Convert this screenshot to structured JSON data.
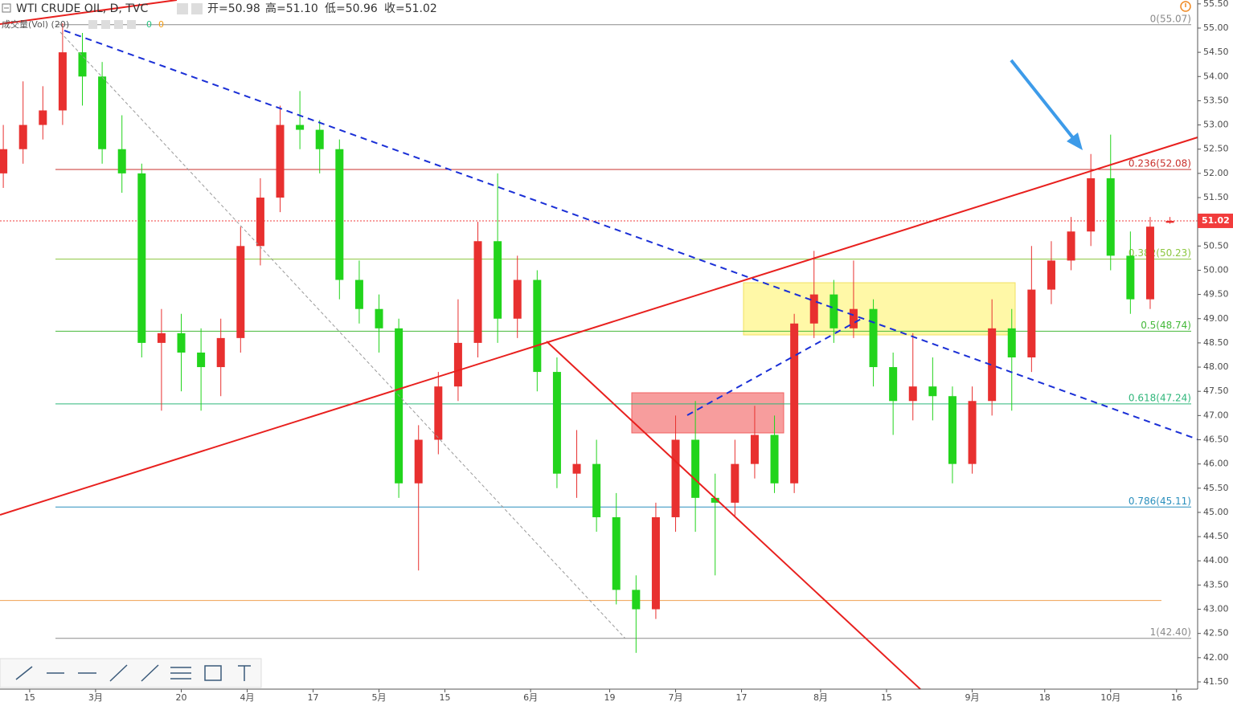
{
  "chart_data": {
    "type": "candlestick",
    "title": "WTI CRUDE OIL, D, TVC",
    "ohlc_labels": [
      "开=50.98",
      "高=51.10",
      "低=50.96",
      "收=51.02"
    ],
    "volume_label": "成交量(Vol) (20)",
    "volume_values": [
      {
        "value": 0,
        "color": "#26c281"
      },
      {
        "value": 0,
        "color": "#f39c12"
      }
    ],
    "up_color": "#e8302f",
    "down_color": "#22d41c",
    "x": [
      -4,
      -1,
      2,
      5,
      8,
      11,
      14,
      17,
      20,
      23,
      26,
      29,
      32,
      35,
      38,
      41,
      44,
      47,
      50,
      53,
      56,
      59,
      62,
      65,
      68,
      71,
      74,
      77,
      80,
      83,
      86,
      89,
      92,
      95,
      98,
      101,
      104,
      107,
      110,
      113,
      116,
      119,
      122,
      125,
      128,
      131,
      134,
      137,
      140,
      143,
      146,
      149,
      152,
      155,
      158,
      161,
      164,
      167,
      170,
      173
    ],
    "open": [
      52.0,
      52.5,
      53.0,
      53.3,
      54.5,
      54.0,
      52.5,
      52.0,
      48.5,
      48.7,
      48.3,
      48.0,
      48.6,
      50.5,
      51.5,
      53.0,
      52.9,
      52.5,
      49.8,
      49.2,
      48.8,
      45.6,
      46.5,
      47.6,
      48.5,
      50.6,
      49.0,
      49.8,
      47.9,
      45.8,
      46.0,
      44.9,
      43.4,
      43.0,
      44.9,
      46.5,
      45.3,
      45.2,
      46.0,
      46.6,
      45.6,
      48.9,
      49.5,
      48.8,
      49.2,
      48.0,
      47.3,
      47.6,
      47.4,
      46.0,
      47.3,
      48.8,
      48.2,
      49.6,
      50.2,
      50.8,
      51.9,
      50.3,
      49.4,
      50.98
    ],
    "high": [
      53.0,
      53.9,
      53.8,
      55.1,
      54.9,
      54.3,
      53.2,
      52.2,
      49.2,
      49.1,
      48.8,
      49.0,
      50.9,
      51.9,
      53.4,
      53.7,
      53.1,
      52.7,
      50.2,
      49.5,
      49.0,
      46.8,
      47.9,
      49.4,
      51.0,
      52.0,
      50.3,
      50.0,
      48.2,
      46.7,
      46.5,
      45.4,
      43.7,
      45.2,
      47.0,
      47.3,
      45.8,
      46.5,
      47.2,
      47.0,
      49.1,
      50.4,
      49.8,
      50.2,
      49.4,
      48.3,
      48.7,
      48.2,
      47.6,
      47.6,
      49.4,
      49.2,
      50.5,
      50.6,
      51.1,
      52.4,
      52.8,
      50.8,
      51.1,
      51.1
    ],
    "low": [
      51.7,
      52.2,
      52.7,
      53.0,
      53.4,
      52.2,
      51.6,
      48.2,
      47.1,
      47.5,
      47.1,
      47.4,
      48.3,
      50.1,
      51.2,
      52.5,
      52.0,
      49.4,
      48.9,
      48.3,
      45.3,
      43.8,
      46.2,
      47.3,
      48.2,
      48.5,
      48.6,
      47.5,
      45.5,
      45.3,
      44.6,
      43.1,
      42.1,
      42.8,
      44.6,
      44.6,
      43.7,
      44.9,
      45.7,
      45.4,
      45.4,
      48.6,
      48.5,
      48.6,
      47.6,
      46.6,
      46.9,
      46.9,
      45.6,
      45.8,
      47.0,
      47.1,
      47.9,
      49.3,
      50.0,
      50.5,
      50.0,
      49.1,
      49.2,
      50.96
    ],
    "close": [
      52.5,
      53.0,
      53.3,
      54.5,
      54.0,
      52.5,
      52.0,
      48.5,
      48.7,
      48.3,
      48.0,
      48.6,
      50.5,
      51.5,
      53.0,
      52.9,
      52.5,
      49.8,
      49.2,
      48.8,
      45.6,
      46.5,
      47.6,
      48.5,
      50.6,
      49.0,
      49.8,
      47.9,
      45.8,
      46.0,
      44.9,
      43.4,
      43.0,
      44.9,
      46.5,
      45.3,
      45.2,
      46.0,
      46.6,
      45.6,
      48.9,
      49.5,
      48.8,
      49.2,
      48.0,
      47.3,
      47.6,
      47.4,
      46.0,
      47.3,
      48.8,
      48.2,
      49.6,
      50.2,
      50.8,
      51.9,
      50.3,
      49.4,
      50.9,
      51.02
    ],
    "last_price": 51.02,
    "last_price_color": "#f23c3c",
    "fib_levels": [
      {
        "value": 55.07,
        "label": "0(55.07)",
        "color": "#8a8a8a"
      },
      {
        "value": 52.08,
        "label": "0.236(52.08)",
        "color": "#c9302c"
      },
      {
        "value": 50.23,
        "label": "0.382(50.23)",
        "color": "#8cc63f"
      },
      {
        "value": 48.74,
        "label": "0.5(48.74)",
        "color": "#44b83a"
      },
      {
        "value": 47.24,
        "label": "0.618(47.24)",
        "color": "#2fb67a"
      },
      {
        "value": 45.11,
        "label": "0.786(45.11)",
        "color": "#2a8fbd"
      },
      {
        "value": 42.4,
        "label": "1(42.40)",
        "color": "#8a8a8a"
      }
    ],
    "hlines": [
      {
        "value": 43.18,
        "color": "#f0a050"
      }
    ],
    "xlim": [
      -4.5,
      177.2
    ],
    "ylim": [
      41.45,
      55.58
    ],
    "xticks": [
      {
        "value": 0,
        "label": "15"
      },
      {
        "value": 10,
        "label": "3月"
      },
      {
        "value": 23,
        "label": "20"
      },
      {
        "value": 33,
        "label": "4月"
      },
      {
        "value": 43,
        "label": "17"
      },
      {
        "value": 53,
        "label": "5月"
      },
      {
        "value": 63,
        "label": "15"
      },
      {
        "value": 76,
        "label": "6月"
      },
      {
        "value": 88,
        "label": "19"
      },
      {
        "value": 98,
        "label": "7月"
      },
      {
        "value": 108,
        "label": "17"
      },
      {
        "value": 120,
        "label": "8月"
      },
      {
        "value": 130,
        "label": "15"
      },
      {
        "value": 143,
        "label": "9月"
      },
      {
        "value": 154,
        "label": "18"
      },
      {
        "value": 164,
        "label": "10月"
      },
      {
        "value": 174,
        "label": "16"
      }
    ],
    "yticks": [
      {
        "value": 41.5,
        "label": "41.50"
      },
      {
        "value": 42,
        "label": "42.00"
      },
      {
        "value": 42.5,
        "label": "42.50"
      },
      {
        "value": 43,
        "label": "43.00"
      },
      {
        "value": 43.5,
        "label": "43.50"
      },
      {
        "value": 44,
        "label": "44.00"
      },
      {
        "value": 44.5,
        "label": "44.50"
      },
      {
        "value": 45,
        "label": "45.00"
      },
      {
        "value": 45.5,
        "label": "45.50"
      },
      {
        "value": 46,
        "label": "46.00"
      },
      {
        "value": 46.5,
        "label": "46.50"
      },
      {
        "value": 47,
        "label": "47.00"
      },
      {
        "value": 47.5,
        "label": "47.50"
      },
      {
        "value": 48,
        "label": "48.00"
      },
      {
        "value": 48.5,
        "label": "48.50"
      },
      {
        "value": 49,
        "label": "49.00"
      },
      {
        "value": 49.5,
        "label": "49.50"
      },
      {
        "value": 50,
        "label": "50.00"
      },
      {
        "value": 50.5,
        "label": "50.50"
      },
      {
        "value": 51,
        "label": "51.00"
      },
      {
        "value": 51.5,
        "label": "51.50"
      },
      {
        "value": 52,
        "label": "52.00"
      },
      {
        "value": 52.5,
        "label": "52.50"
      },
      {
        "value": 53,
        "label": "53.00"
      },
      {
        "value": 53.5,
        "label": "53.50"
      },
      {
        "value": 54,
        "label": "54.00"
      },
      {
        "value": 54.5,
        "label": "54.50"
      },
      {
        "value": 55,
        "label": "55.00"
      },
      {
        "value": 55.5,
        "label": "55.50"
      }
    ],
    "grid": false
  }
}
